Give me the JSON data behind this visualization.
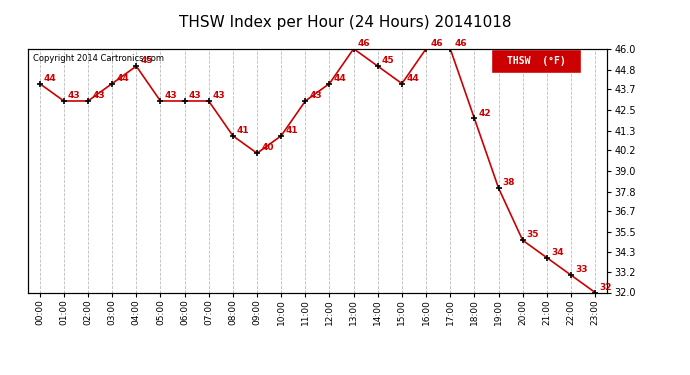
{
  "title": "THSW Index per Hour (24 Hours) 20141018",
  "copyright": "Copyright 2014 Cartronics.com",
  "legend_label": "THSW  (°F)",
  "hours": [
    "00:00",
    "01:00",
    "02:00",
    "03:00",
    "04:00",
    "05:00",
    "06:00",
    "07:00",
    "08:00",
    "09:00",
    "10:00",
    "11:00",
    "12:00",
    "13:00",
    "14:00",
    "15:00",
    "16:00",
    "17:00",
    "18:00",
    "19:00",
    "20:00",
    "21:00",
    "22:00",
    "23:00"
  ],
  "values": [
    44,
    43,
    43,
    44,
    45,
    43,
    43,
    43,
    41,
    40,
    41,
    43,
    44,
    46,
    45,
    44,
    46,
    46,
    42,
    38,
    35,
    34,
    33,
    32
  ],
  "ylim_min": 32.0,
  "ylim_max": 46.0,
  "yticks": [
    32.0,
    33.2,
    34.3,
    35.5,
    36.7,
    37.8,
    39.0,
    40.2,
    41.3,
    42.5,
    43.7,
    44.8,
    46.0
  ],
  "line_color": "#cc0000",
  "marker_color": "#000000",
  "grid_color": "#bbbbbb",
  "bg_color": "#ffffff",
  "title_fontsize": 11,
  "label_color": "#cc0000",
  "copyright_color": "#000000",
  "legend_bg": "#cc0000",
  "legend_text_color": "#ffffff"
}
